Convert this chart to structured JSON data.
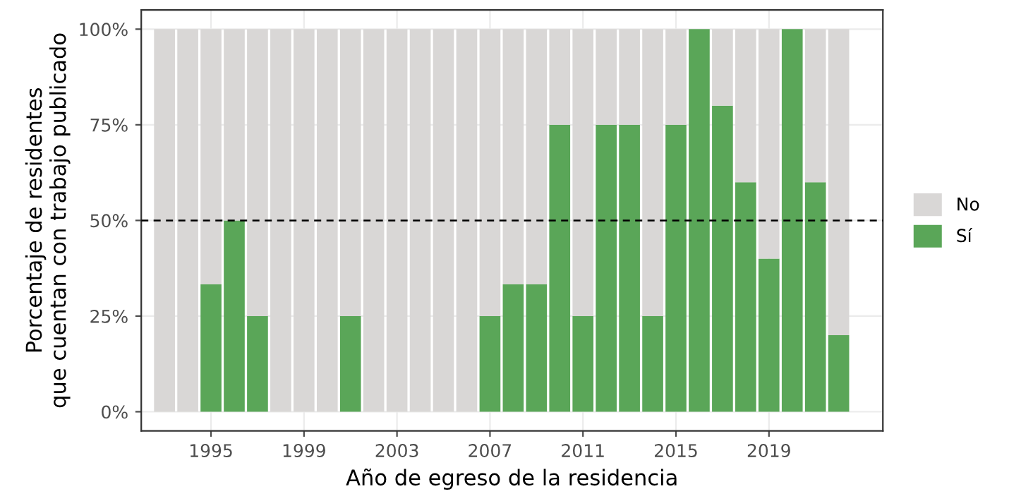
{
  "chart_data": {
    "type": "bar",
    "stacked": true,
    "xlabel": "Año de egreso de la residencia",
    "ylabel": "Porcentaje de residentes\nque cuentan con trabajo publicado",
    "x": [
      1993,
      1994,
      1995,
      1996,
      1997,
      1998,
      1999,
      2000,
      2001,
      2002,
      2003,
      2004,
      2005,
      2006,
      2007,
      2008,
      2009,
      2010,
      2011,
      2012,
      2013,
      2014,
      2015,
      2016,
      2017,
      2018,
      2019,
      2020,
      2021,
      2022
    ],
    "series": [
      {
        "name": "Sí",
        "color": "#5aa658",
        "values": [
          0,
          0,
          33.3,
          50,
          25,
          0,
          0,
          0,
          25,
          0,
          0,
          0,
          0,
          0,
          25,
          33.3,
          33.3,
          75,
          25,
          75,
          75,
          25,
          75,
          100,
          80,
          60,
          40,
          100,
          60,
          20
        ]
      },
      {
        "name": "No",
        "color": "#d9d7d6",
        "values": [
          100,
          100,
          66.7,
          50,
          75,
          100,
          100,
          100,
          75,
          100,
          100,
          100,
          100,
          100,
          75,
          66.7,
          66.7,
          25,
          75,
          25,
          25,
          75,
          25,
          0,
          20,
          40,
          60,
          0,
          40,
          80
        ]
      }
    ],
    "xlim": [
      1992,
      2023.9
    ],
    "xticks": [
      1995,
      1999,
      2003,
      2007,
      2011,
      2015,
      2019
    ],
    "ylim": [
      -5,
      105
    ],
    "yticks": [
      {
        "value": 0,
        "label": "0%"
      },
      {
        "value": 25,
        "label": "25%"
      },
      {
        "value": 50,
        "label": "50%"
      },
      {
        "value": 75,
        "label": "75%"
      },
      {
        "value": 100,
        "label": "100%"
      }
    ],
    "ref_lines": [
      {
        "axis": "y",
        "value": 50,
        "color": "#000000",
        "line_style": "dashed"
      }
    ],
    "grid": true,
    "legend": "right"
  }
}
